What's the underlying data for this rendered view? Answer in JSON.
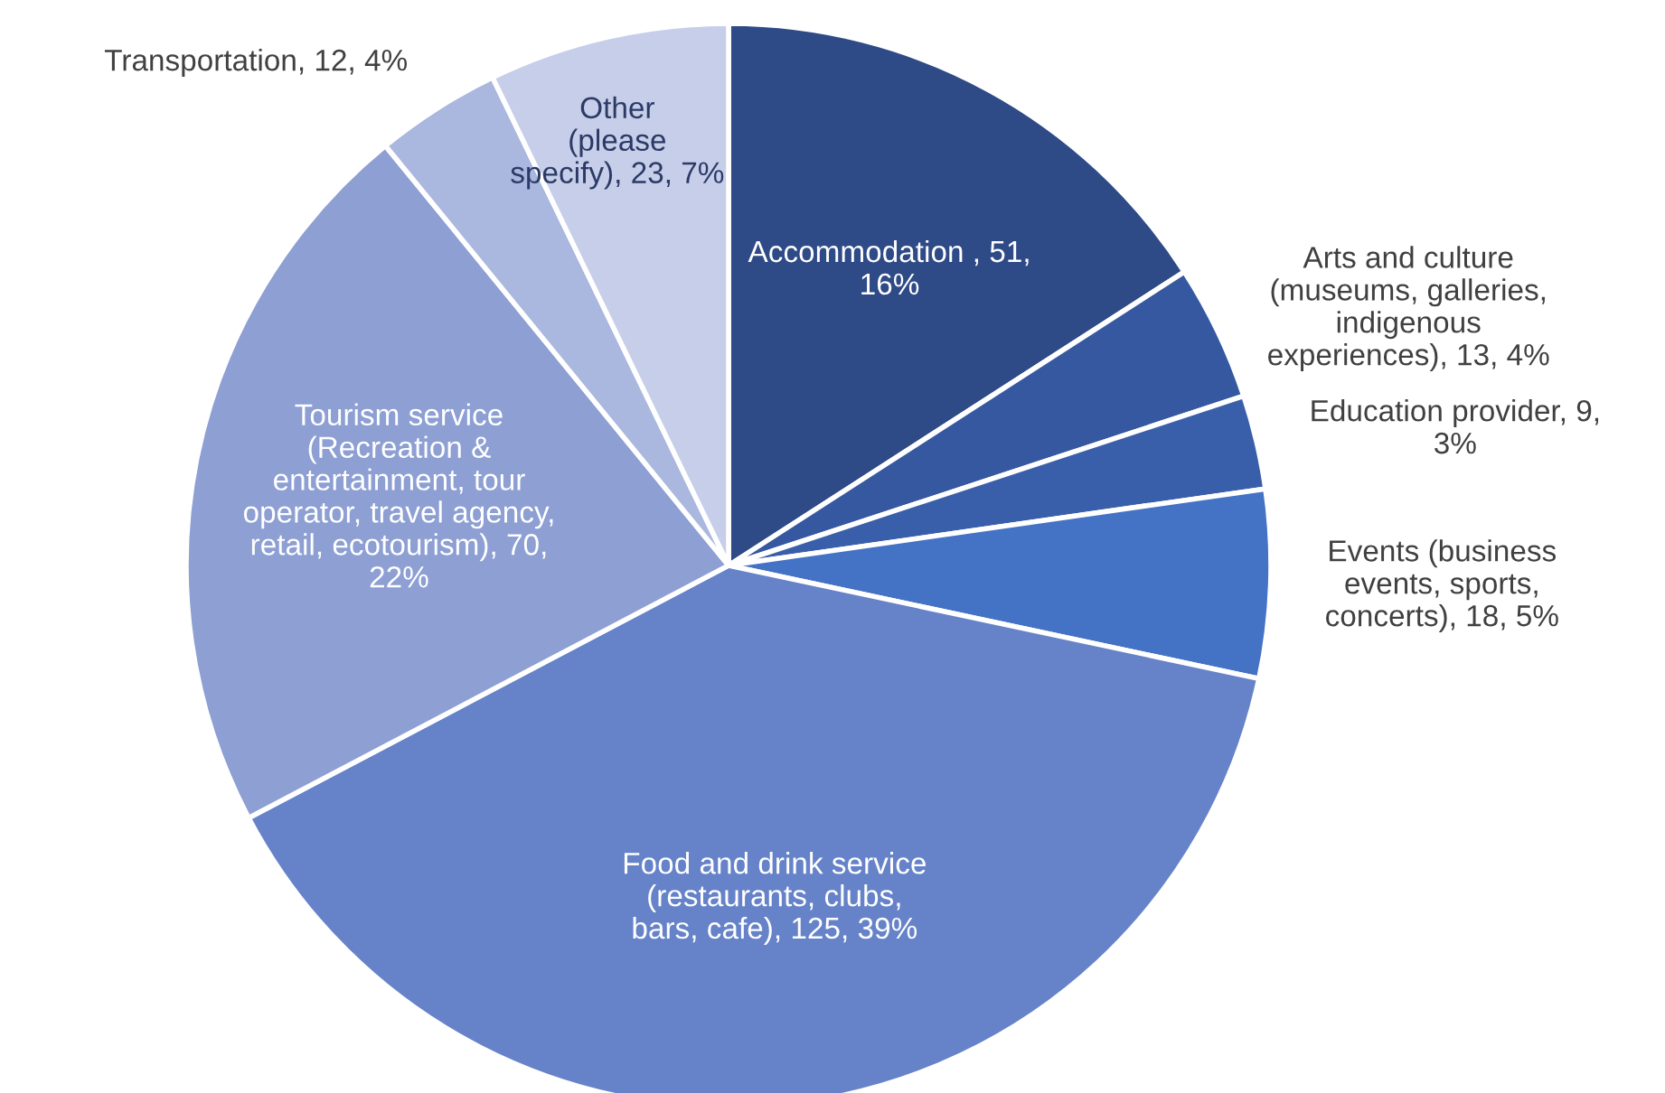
{
  "chart_data": {
    "type": "pie",
    "categories": [
      "Accommodation ",
      "Arts and culture\n(museums, galleries,\nindigenous\nexperiences)",
      "Education provider",
      "Events (business\nevents, sports,\nconcerts)",
      "Food and drink service\n(restaurants, clubs,\nbars, cafe)",
      "Tourism service\n(Recreation &\nentertainment, tour\noperator, travel agency,\nretail, ecotourism)",
      "Transportation",
      "Other\n(please\nspecify)"
    ],
    "values": [
      51,
      13,
      9,
      18,
      125,
      70,
      12,
      23
    ],
    "value_labels": [
      "51,\n16%",
      "13, 4%",
      "9,\n3%",
      "18, 5%",
      "125, 39%",
      "70,\n22%",
      "12, 4%",
      "23, 7%"
    ],
    "colors": [
      "#2e4a87",
      "#3658a0",
      "#3a5faa",
      "#4472c4",
      "#6683c9",
      "#8d9fd3",
      "#aab7de",
      "#c6cee9"
    ],
    "legend": false
  }
}
